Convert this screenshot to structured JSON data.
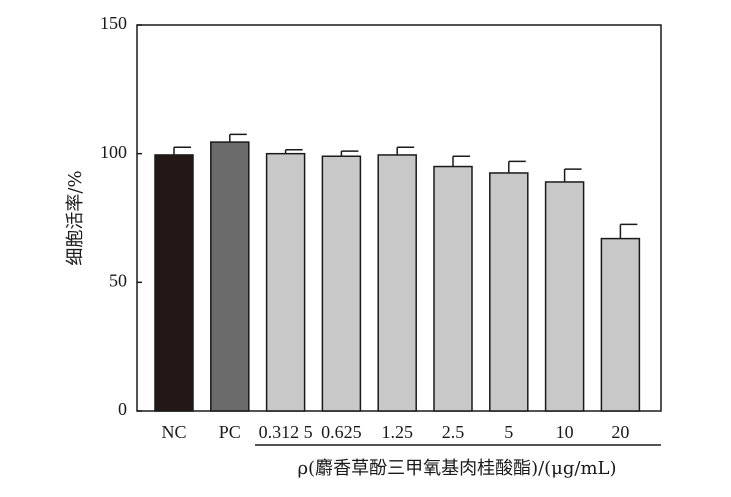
{
  "chart_data": {
    "type": "bar",
    "categories": [
      "NC",
      "PC",
      "0.312 5",
      "0.625",
      "1.25",
      "2.5",
      "5",
      "10",
      "20"
    ],
    "values": [
      99.5,
      104.5,
      100,
      99,
      99.5,
      95,
      92.5,
      89,
      67
    ],
    "error": [
      3,
      3,
      1.5,
      2,
      3,
      4,
      4.5,
      5,
      5.5
    ],
    "colors": [
      "#231815",
      "#6b6b6b",
      "#c8c8c8",
      "#c8c8c8",
      "#c8c8c8",
      "#c8c8c8",
      "#c8c8c8",
      "#c8c8c8",
      "#c8c8c8"
    ],
    "title": "",
    "ylabel": "细胞活率/%",
    "xlabel": "ρ(麝香草酚三甲氧基肉桂酸酯)/(μg/mL)",
    "ylim": [
      0,
      150
    ],
    "yticks": [
      0,
      50,
      100,
      150
    ],
    "grid": false,
    "legend": "none"
  }
}
